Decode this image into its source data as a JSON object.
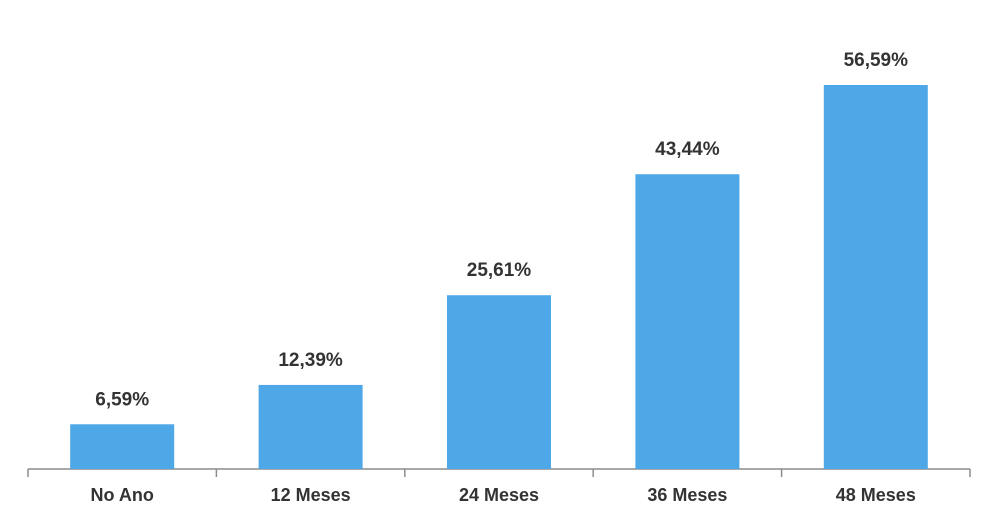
{
  "chart_data": {
    "type": "bar",
    "categories": [
      "No Ano",
      "12 Meses",
      "24 Meses",
      "36 Meses",
      "48 Meses"
    ],
    "values": [
      6.59,
      12.39,
      25.61,
      43.44,
      56.59
    ],
    "value_labels": [
      "6,59%",
      "12,39%",
      "25,61%",
      "43,44%",
      "56,59%"
    ],
    "color": "#4ea7e6"
  }
}
